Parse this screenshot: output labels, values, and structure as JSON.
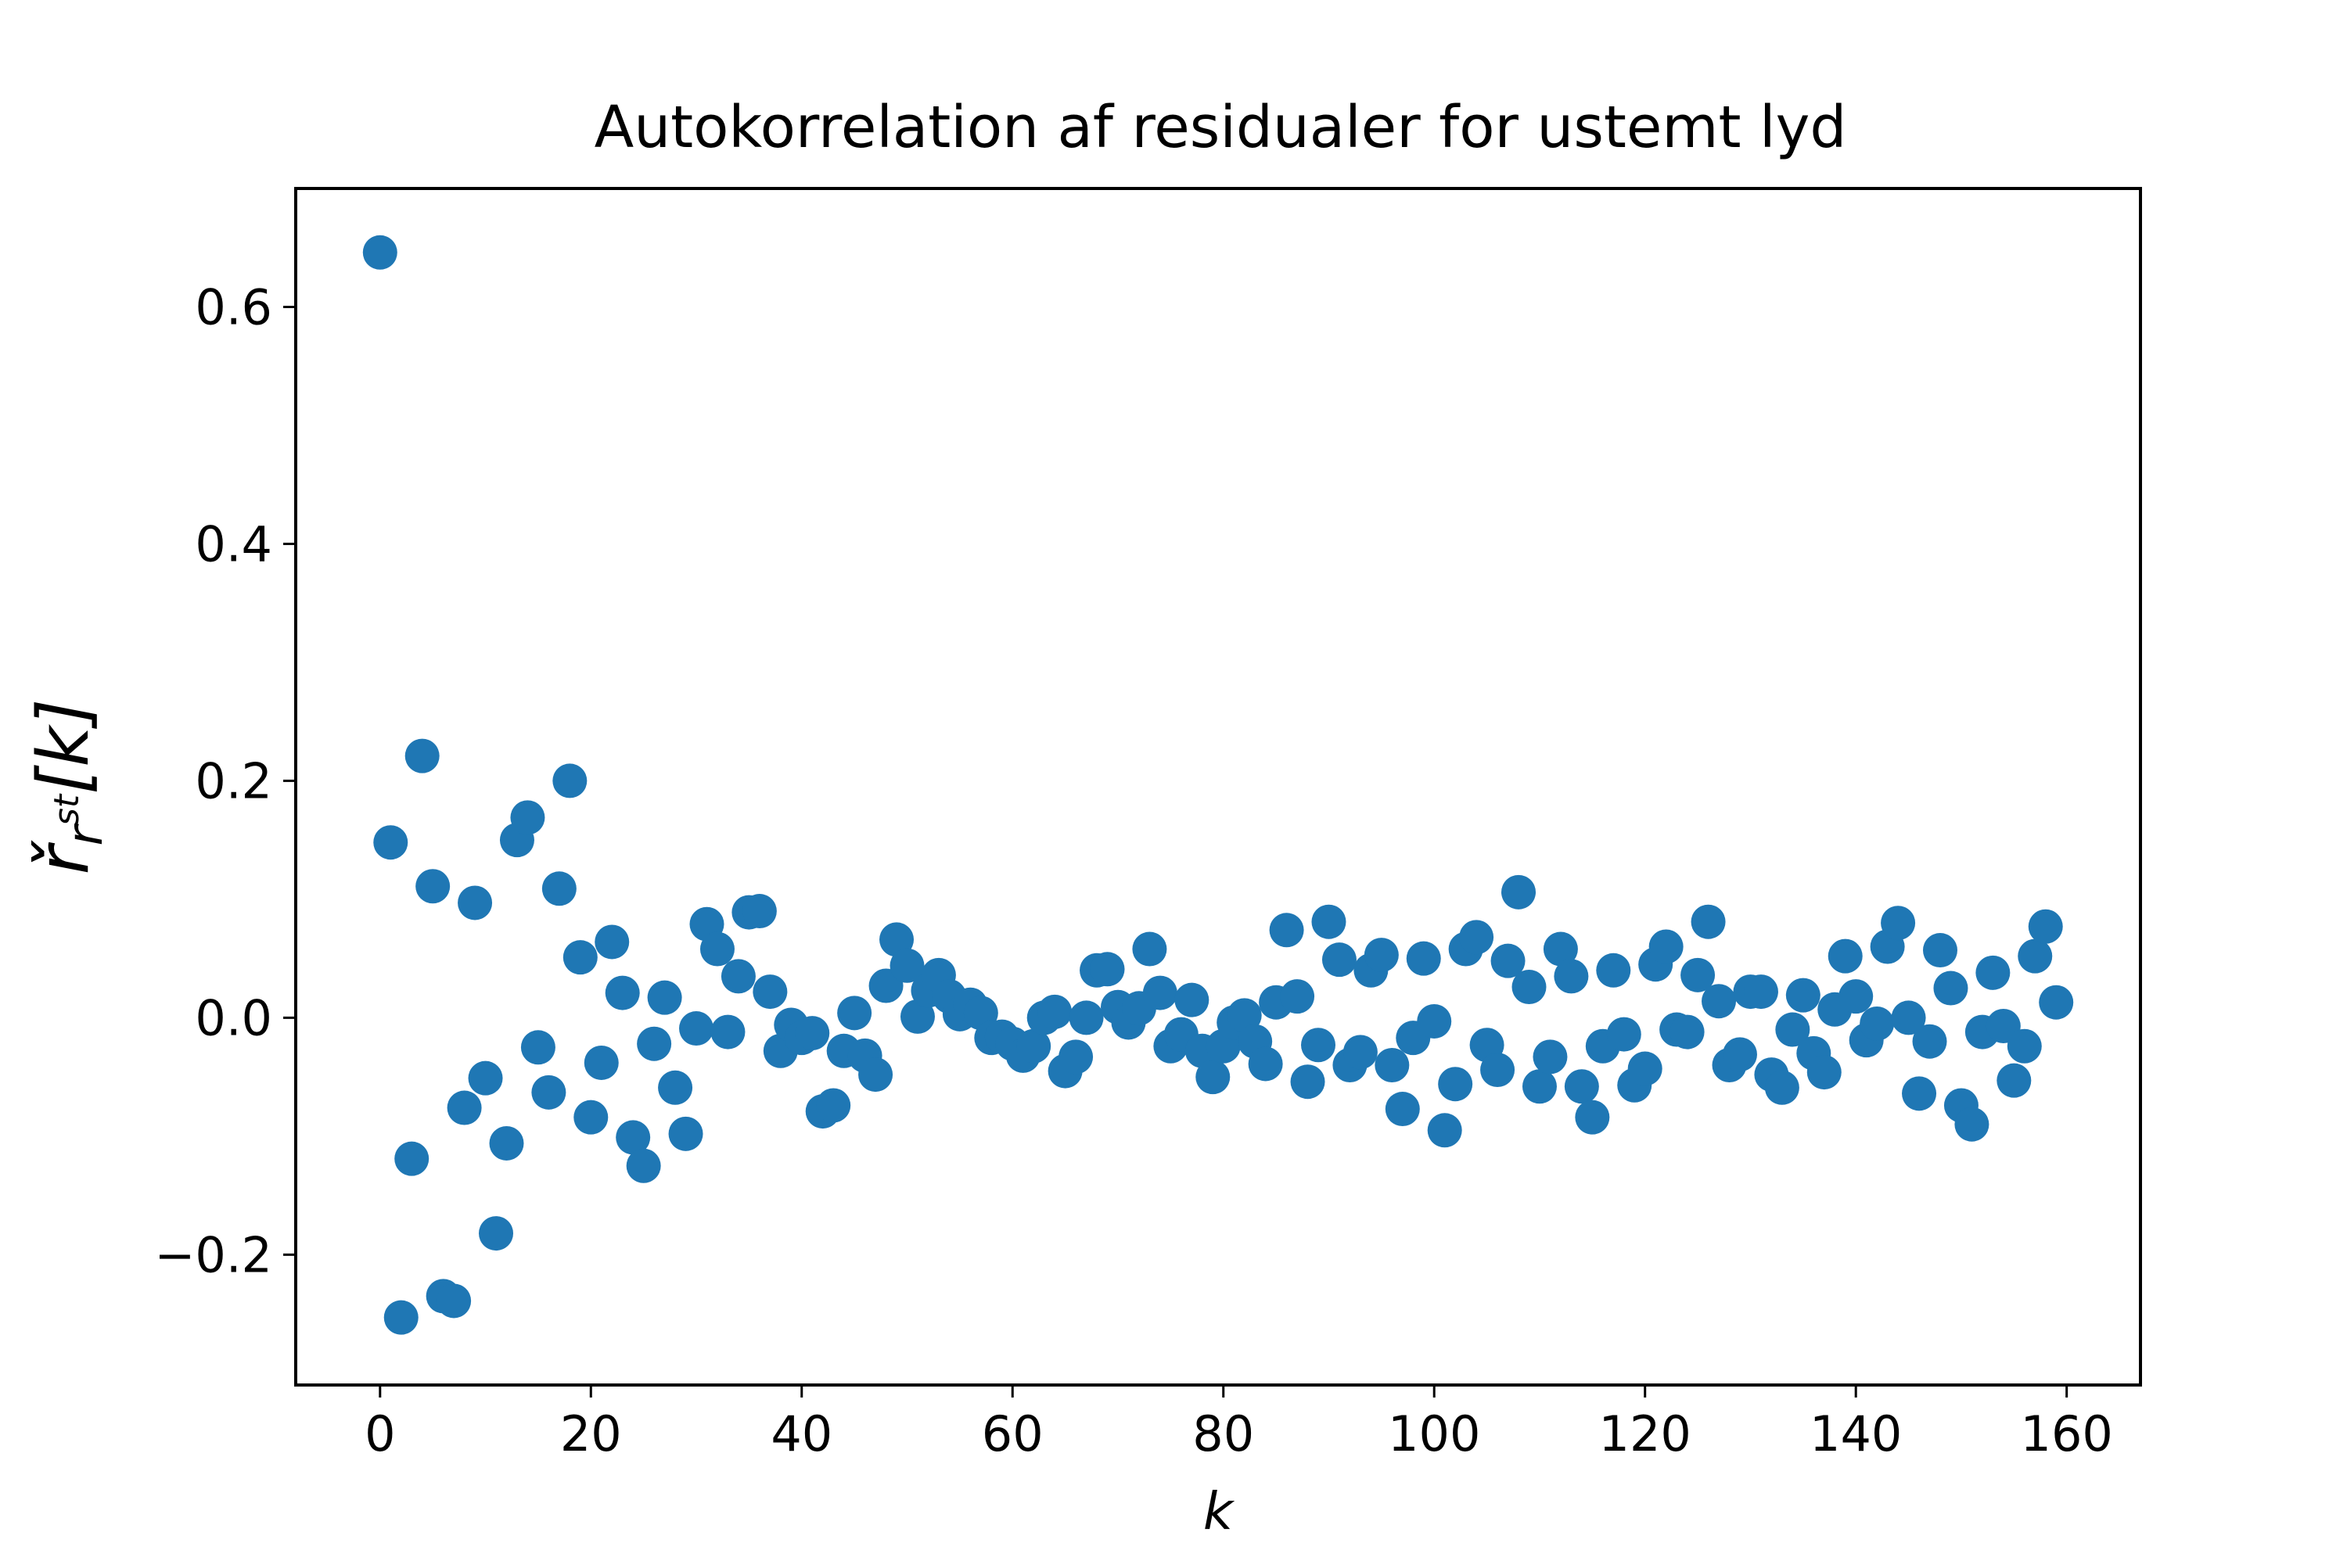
{
  "chart_data": {
    "type": "scatter",
    "title": "Autokorrelation af residualer for ustemt lyd",
    "xlabel": "k",
    "ylabel": {
      "base": "ř",
      "sub": "r",
      "subsup": "st",
      "bracket": "[k]"
    },
    "xlim": [
      -8,
      167
    ],
    "ylim": [
      -0.31,
      0.7
    ],
    "x_ticks": [
      {
        "value": 0,
        "label": "0"
      },
      {
        "value": 20,
        "label": "20"
      },
      {
        "value": 40,
        "label": "40"
      },
      {
        "value": 60,
        "label": "60"
      },
      {
        "value": 80,
        "label": "80"
      },
      {
        "value": 100,
        "label": "100"
      },
      {
        "value": 120,
        "label": "120"
      },
      {
        "value": 140,
        "label": "140"
      },
      {
        "value": 160,
        "label": "160"
      }
    ],
    "y_ticks": [
      {
        "value": -0.2,
        "label": "−0.2"
      },
      {
        "value": 0.0,
        "label": "0.0"
      },
      {
        "value": 0.2,
        "label": "0.2"
      },
      {
        "value": 0.4,
        "label": "0.4"
      },
      {
        "value": 0.6,
        "label": "0.6"
      }
    ],
    "grid": false,
    "marker_color": "#1f77b4",
    "series": [
      {
        "x": [
          0,
          1,
          2,
          3,
          4,
          5,
          6,
          7,
          8,
          9,
          10,
          11,
          12,
          13,
          14,
          15,
          16,
          17,
          18,
          19,
          20,
          21,
          22,
          23,
          24,
          25,
          26,
          27,
          28,
          29,
          30,
          31,
          32,
          33,
          34,
          35,
          36,
          37,
          38,
          39,
          40,
          41,
          42,
          43,
          44,
          45,
          46,
          47,
          48,
          49,
          50,
          51,
          52,
          53,
          54,
          55,
          56,
          57,
          58,
          59,
          60,
          61,
          62,
          63,
          64,
          65,
          66,
          67,
          68,
          69,
          70,
          71,
          72,
          73,
          74,
          75,
          76,
          77,
          78,
          79,
          80,
          81,
          82,
          83,
          84,
          85,
          86,
          87,
          88,
          89,
          90,
          91,
          92,
          93,
          94,
          95,
          96,
          97,
          98,
          99,
          100,
          101,
          102,
          103,
          104,
          105,
          106,
          107,
          108,
          109,
          110,
          111,
          112,
          113,
          114,
          115,
          116,
          117,
          118,
          119,
          120,
          121,
          122,
          123,
          124,
          125,
          126,
          127,
          128,
          129,
          130,
          131,
          132,
          133,
          134,
          135,
          136,
          137,
          138,
          139,
          140,
          141,
          142,
          143,
          144,
          145,
          146,
          147,
          148,
          149,
          150,
          151,
          152,
          153,
          154,
          155,
          156,
          157,
          158,
          159
        ],
        "y": [
          0.646,
          0.148,
          -0.253,
          -0.119,
          0.221,
          0.111,
          -0.235,
          -0.239,
          -0.076,
          0.097,
          -0.051,
          -0.182,
          -0.106,
          0.15,
          0.169,
          -0.025,
          -0.063,
          0.109,
          0.2,
          0.051,
          -0.084,
          -0.038,
          0.064,
          0.021,
          -0.101,
          -0.125,
          -0.022,
          0.017,
          -0.059,
          -0.098,
          -0.009,
          0.079,
          0.058,
          -0.012,
          0.035,
          0.089,
          0.09,
          0.022,
          -0.028,
          -0.006,
          -0.017,
          -0.013,
          -0.079,
          -0.074,
          -0.028,
          0.004,
          -0.032,
          -0.048,
          0.027,
          0.066,
          0.044,
          0.001,
          0.023,
          0.036,
          0.018,
          0.003,
          0.011,
          0.004,
          -0.017,
          -0.016,
          -0.022,
          -0.032,
          -0.024,
          0.0,
          0.005,
          -0.045,
          -0.033,
          0.0,
          0.04,
          0.041,
          0.009,
          -0.004,
          0.008,
          0.058,
          0.021,
          -0.024,
          -0.014,
          0.015,
          -0.028,
          -0.05,
          -0.024,
          -0.004,
          0.002,
          -0.02,
          -0.039,
          0.013,
          0.074,
          0.018,
          -0.054,
          -0.023,
          0.081,
          0.049,
          -0.04,
          -0.029,
          0.04,
          0.053,
          -0.04,
          -0.077,
          -0.017,
          0.05,
          -0.003,
          -0.095,
          -0.056,
          0.058,
          0.068,
          -0.023,
          -0.044,
          0.048,
          0.106,
          0.026,
          -0.058,
          -0.033,
          0.058,
          0.035,
          -0.058,
          -0.084,
          -0.024,
          0.04,
          -0.014,
          -0.057,
          -0.043,
          0.045,
          0.06,
          -0.01,
          -0.012,
          0.036,
          0.081,
          0.014,
          -0.04,
          -0.031,
          0.022,
          0.022,
          -0.048,
          -0.059,
          -0.01,
          0.019,
          -0.03,
          -0.046,
          0.007,
          0.052,
          0.018,
          -0.019,
          -0.005,
          0.06,
          0.08,
          0.0,
          -0.064,
          -0.02,
          0.057,
          0.025,
          -0.074,
          -0.09,
          -0.012,
          0.038,
          -0.007,
          -0.053,
          -0.024,
          0.052,
          0.077,
          0.013
        ]
      }
    ]
  }
}
